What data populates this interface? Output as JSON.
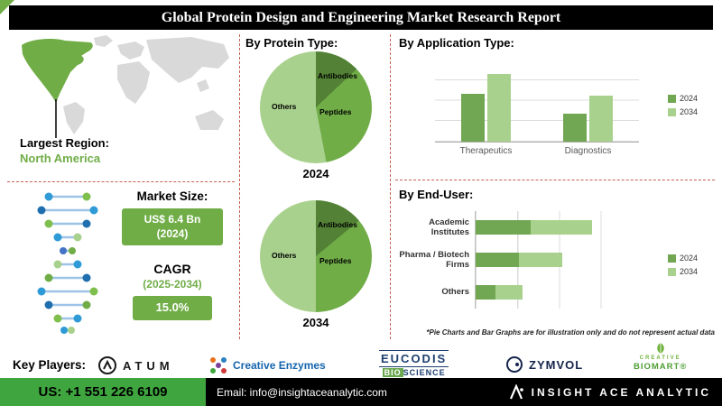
{
  "title": "Global Protein Design and Engineering Market Research Report",
  "left_panel": {
    "largest_region_label": "Largest Region:",
    "largest_region_value": "North America",
    "market_size_label": "Market Size:",
    "market_size_value": "US$ 6.4 Bn",
    "market_size_year": "(2024)",
    "cagr_label": "CAGR",
    "cagr_period": "(2025-2034)",
    "cagr_value": "15.0%"
  },
  "sections": {
    "protein_type_heading": "By Protein Type:",
    "application_heading": "By Application Type:",
    "end_user_heading": "By End-User:",
    "disclaimer": "*Pie Charts and Bar Graphs are for illustration only and do not represent actual data"
  },
  "key_players": {
    "label": "Key Players:"
  },
  "logos": {
    "atum": "ATUM",
    "creative_enzymes": "Creative Enzymes",
    "eucodis_name": "EUCODIS",
    "eucodis_bio": "BIO",
    "eucodis_science": "SCIENCE",
    "zymvol": "ZYMVOL",
    "biomart_creative": "CREATIVE",
    "biomart_name": "BIOMART®",
    "insight_brand": "INSIGHT ACE ANALYTIC"
  },
  "footer": {
    "phone": "US: +1 551 226 6109",
    "email": "Email: info@insightaceanalytic.com"
  },
  "colors": {
    "accent_dark_green": "#538135",
    "accent_green": "#70ad47",
    "accent_light_green": "#a9d18e",
    "divider": "#c4604f",
    "footer_green": "#3fa63f"
  },
  "chart_data": [
    {
      "type": "pie",
      "title": "By Protein Type — 2024",
      "year": "2024",
      "labels": [
        "Antibodies",
        "Peptides",
        "Others"
      ],
      "values": [
        13,
        34,
        53
      ],
      "colors": [
        "#538135",
        "#70ad47",
        "#a9d18e"
      ],
      "note": "illustrative only per on-image disclaimer"
    },
    {
      "type": "pie",
      "title": "By Protein Type — 2034",
      "year": "2034",
      "labels": [
        "Antibodies",
        "Peptides",
        "Others"
      ],
      "values": [
        14,
        36,
        50
      ],
      "colors": [
        "#538135",
        "#70ad47",
        "#a9d18e"
      ],
      "note": "illustrative only per on-image disclaimer"
    },
    {
      "type": "bar",
      "title": "By Application Type",
      "categories": [
        "Therapeutics",
        "Diagnostics"
      ],
      "series": [
        {
          "name": "2024",
          "color": "#71a653",
          "values": [
            58,
            34
          ]
        },
        {
          "name": "2034",
          "color": "#a9d18e",
          "values": [
            82,
            56
          ]
        }
      ],
      "ylim": [
        0,
        100
      ],
      "grid": true,
      "legend_position": "right",
      "note": "illustrative only per on-image disclaimer"
    },
    {
      "type": "bar-horizontal",
      "title": "By End-User",
      "categories": [
        "Academic Institutes",
        "Pharma / Biotech Firms",
        "Others"
      ],
      "series": [
        {
          "name": "2024",
          "color": "#71a653",
          "values": [
            33,
            26,
            12
          ]
        },
        {
          "name": "2034",
          "color": "#a9d18e",
          "values": [
            37,
            26,
            16
          ]
        }
      ],
      "stacked": true,
      "xlim": [
        0,
        100
      ],
      "grid": true,
      "legend_position": "right",
      "note": "illustrative only per on-image disclaimer"
    }
  ]
}
